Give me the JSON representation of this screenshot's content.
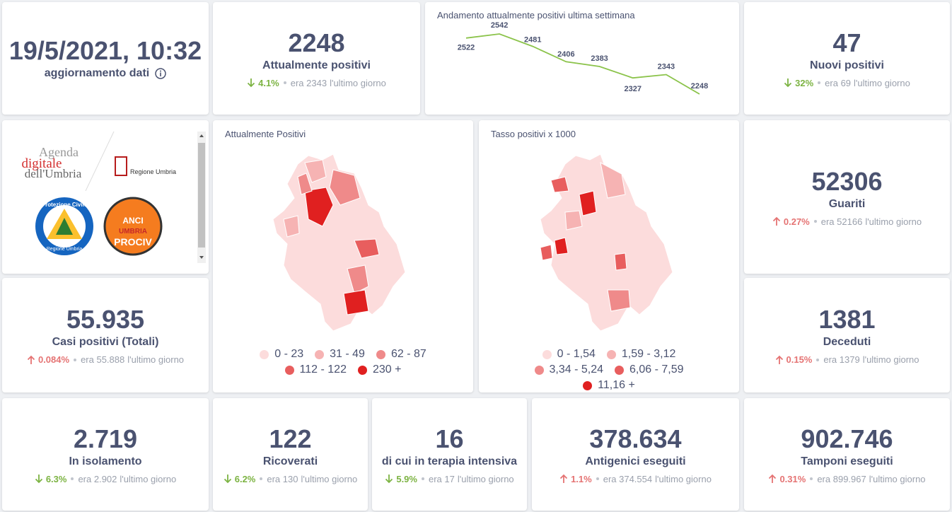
{
  "header": {
    "timestamp": "19/5/2021, 10:32",
    "caption": "aggiornamento dati"
  },
  "sparkline": {
    "title": "Andamento attualmente positivi ultima settimana",
    "color": "#8bc34a",
    "values": [
      2522,
      2542,
      2481,
      2406,
      2383,
      2327,
      2343,
      2248
    ]
  },
  "logos": {
    "agenda": [
      "Agenda",
      "digitale",
      "dell'Umbria"
    ],
    "regione": "Regione Umbria",
    "protezione": "Protezione Civile",
    "protezione_sub": "Regione Umbria",
    "anci": [
      "ANCI",
      "UMBRIA",
      "PROCIV"
    ]
  },
  "maps": [
    {
      "title": "Attualmente Positivi",
      "legend": [
        {
          "label": "0 - 23",
          "color": "#fcdcdc"
        },
        {
          "label": "31 - 49",
          "color": "#f6b3b3"
        },
        {
          "label": "62 - 87",
          "color": "#ef8a8a"
        },
        {
          "label": "112 - 122",
          "color": "#e85e5e"
        },
        {
          "label": "230 +",
          "color": "#e02020"
        }
      ]
    },
    {
      "title": "Tasso positivi x 1000",
      "legend": [
        {
          "label": "0 - 1,54",
          "color": "#fcdcdc"
        },
        {
          "label": "1,59 - 3,12",
          "color": "#f6b3b3"
        },
        {
          "label": "3,34 - 5,24",
          "color": "#ef8a8a"
        },
        {
          "label": "6,06 - 7,59",
          "color": "#e85e5e"
        },
        {
          "label": "11,16 +",
          "color": "#e02020"
        }
      ]
    }
  ],
  "stats": [
    {
      "value": "2248",
      "label": "Attualmente positivi",
      "change": "4.1%",
      "trend": "down",
      "previous": "era 2343",
      "suffix": "l'ultimo giorno"
    },
    {
      "value": "47",
      "label": "Nuovi positivi",
      "change": "32%",
      "trend": "down",
      "previous": "era 69",
      "suffix": "l'ultimo giorno"
    },
    {
      "value": "52306",
      "label": "Guariti",
      "change": "0.27%",
      "trend": "up",
      "previous": "era 52166",
      "suffix": "l'ultimo giorno"
    },
    {
      "value": "55.935",
      "label": "Casi positivi (Totali)",
      "change": "0.084%",
      "trend": "up",
      "previous": "era 55.888",
      "suffix": "l'ultimo giorno"
    },
    {
      "value": "1381",
      "label": "Deceduti",
      "change": "0.15%",
      "trend": "up",
      "previous": "era 1379",
      "suffix": "l'ultimo giorno"
    },
    {
      "value": "2.719",
      "label": "In isolamento",
      "change": "6.3%",
      "trend": "down",
      "previous": "era 2.902",
      "suffix": "l'ultimo giorno"
    },
    {
      "value": "122",
      "label": "Ricoverati",
      "change": "6.2%",
      "trend": "down",
      "previous": "era 130",
      "suffix": "l'ultimo giorno"
    },
    {
      "value": "16",
      "label": "di cui in terapia intensiva",
      "change": "5.9%",
      "trend": "down",
      "previous": "era 17",
      "suffix": "l'ultimo giorno"
    },
    {
      "value": "378.634",
      "label": "Antigenici eseguiti",
      "change": "1.1%",
      "trend": "up",
      "previous": "era 374.554",
      "suffix": "l'ultimo giorno"
    },
    {
      "value": "902.746",
      "label": "Tamponi eseguiti",
      "change": "0.31%",
      "trend": "up",
      "previous": "era 899.967",
      "suffix": "l'ultimo giorno"
    }
  ]
}
